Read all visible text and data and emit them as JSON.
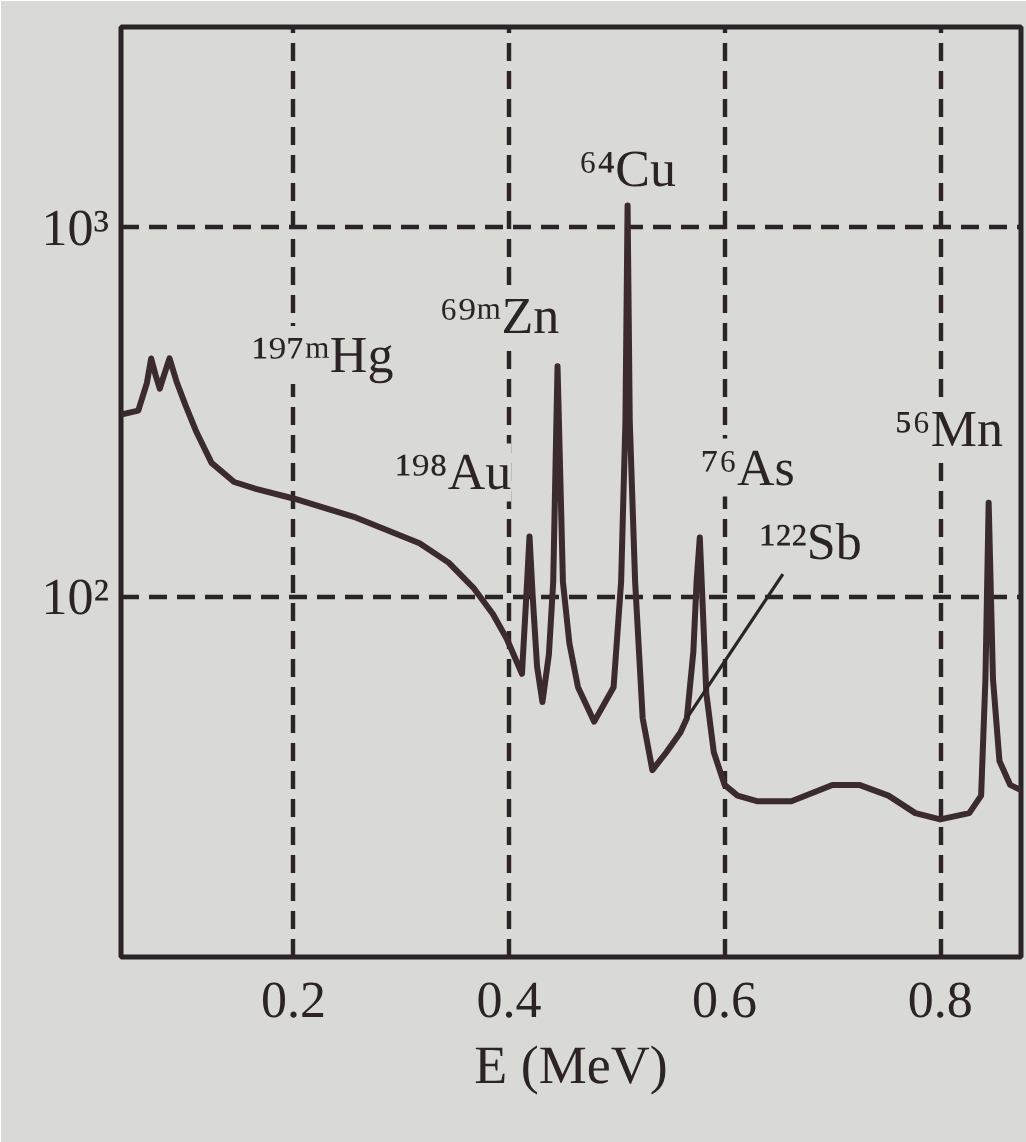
{
  "chart_data": {
    "type": "line",
    "xlabel": "E (MeV)",
    "x": [
      0.04,
      0.056,
      0.064,
      0.068,
      0.072,
      0.076,
      0.08,
      0.085,
      0.092,
      0.1,
      0.11,
      0.124,
      0.145,
      0.166,
      0.2,
      0.256,
      0.317,
      0.344,
      0.367,
      0.385,
      0.398,
      0.412,
      0.416,
      0.419,
      0.422,
      0.426,
      0.431,
      0.437,
      0.441,
      0.445,
      0.45,
      0.456,
      0.464,
      0.479,
      0.497,
      0.504,
      0.508,
      0.51,
      0.512,
      0.517,
      0.524,
      0.533,
      0.546,
      0.559,
      0.565,
      0.571,
      0.574,
      0.577,
      0.58,
      0.583,
      0.59,
      0.6,
      0.612,
      0.63,
      0.662,
      0.7,
      0.725,
      0.752,
      0.777,
      0.8,
      0.827,
      0.838,
      0.842,
      0.845,
      0.849,
      0.855,
      0.865,
      0.875
    ],
    "series": [
      {
        "color": "#3b2a2e",
        "values": [
          312,
          320,
          380,
          443,
          400,
          367,
          400,
          443,
          380,
          330,
          280,
          231,
          205,
          196,
          185,
          165,
          140,
          124,
          106,
          90,
          77,
          62,
          100,
          146,
          100,
          65,
          52,
          70,
          110,
          422,
          110,
          75,
          57,
          46,
          57,
          110,
          300,
          1150,
          300,
          110,
          47,
          34,
          38,
          43,
          47,
          71,
          110,
          145,
          90,
          55,
          38,
          31,
          29,
          28,
          28,
          31,
          31,
          29,
          26,
          25,
          26,
          29,
          60,
          180,
          60,
          36,
          31,
          30
        ]
      }
    ],
    "xlim": [
      0.04,
      0.875
    ],
    "ylim": [
      10.6,
      3500
    ],
    "xticks": [
      0.2,
      0.4,
      0.6,
      0.8
    ],
    "yticks": [
      {
        "value": 100,
        "label": "10²"
      },
      {
        "value": 1000,
        "label": "10³"
      }
    ],
    "log": true,
    "grid": true,
    "line_style": "solid",
    "annotations": [
      "¹⁹⁷ᵐHg",
      {
        "text": "⁶⁹ᵐZn",
        "x": 0.445,
        "y": 422
      },
      {
        "text": "⁶⁴Cu",
        "x": 0.51,
        "y": 1150
      },
      {
        "text": "¹⁹⁸Au",
        "x": 0.419,
        "y": 146
      },
      {
        "text": "⁷⁶As",
        "x": 0.577,
        "y": 145
      },
      {
        "text": "⁵⁶Mn",
        "x": 0.845,
        "y": 180
      },
      {
        "text": "¹²²Sb",
        "x": 0.565,
        "y": 47
      }
    ]
  }
}
